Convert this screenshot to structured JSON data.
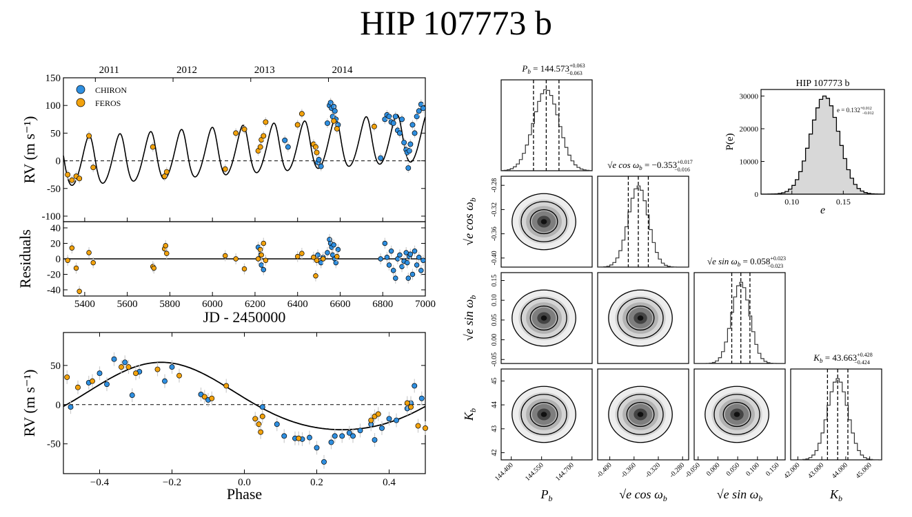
{
  "title": "HIP 107773 b",
  "legend": [
    {
      "label": "CHIRON",
      "color": "#2f8fe0"
    },
    {
      "label": "FEROS",
      "color": "#f2a20d"
    }
  ],
  "colors": {
    "chiron": "#2f8fe0",
    "feros": "#f2a20d",
    "hist_fill": "#d8d8d8"
  },
  "chart_data": [
    {
      "type": "scatter",
      "name": "rv-time-series",
      "title": "",
      "xlabel": "JD - 2450000",
      "ylabel": "RV (m s⁻¹)",
      "xlim": [
        5300,
        7000
      ],
      "ylim": [
        -110,
        150
      ],
      "x_ticks": [
        5400,
        5600,
        5800,
        6000,
        6200,
        6400,
        6600,
        6800,
        7000
      ],
      "y_ticks": [
        -100,
        -50,
        0,
        50,
        100,
        150
      ],
      "top_axis": {
        "ticks": [
          5450,
          5815,
          6180,
          6545
        ],
        "labels": [
          "2011",
          "2012",
          "2013",
          "2014"
        ]
      },
      "model": {
        "period": 144.573,
        "K": 43.663,
        "e": 0.132,
        "trend_per_day": 0.0265,
        "offset_at_5300": -6
      },
      "series": [
        {
          "name": "CHIRON",
          "points": [
            [
              6495,
              -3
            ],
            [
              6500,
              2
            ],
            [
              6510,
              -10
            ],
            [
              6540,
              68
            ],
            [
              6550,
              100
            ],
            [
              6555,
              105
            ],
            [
              6560,
              95
            ],
            [
              6565,
              80
            ],
            [
              6570,
              98
            ],
            [
              6575,
              90
            ],
            [
              6580,
              75
            ],
            [
              6590,
              65
            ],
            [
              6790,
              5
            ],
            [
              6810,
              75
            ],
            [
              6820,
              83
            ],
            [
              6830,
              80
            ],
            [
              6840,
              70
            ],
            [
              6850,
              68
            ],
            [
              6860,
              80
            ],
            [
              6870,
              55
            ],
            [
              6880,
              50
            ],
            [
              6890,
              75
            ],
            [
              6900,
              33
            ],
            [
              6910,
              20
            ],
            [
              6915,
              15
            ],
            [
              6920,
              -13
            ],
            [
              6925,
              18
            ],
            [
              6930,
              30
            ],
            [
              6940,
              65
            ],
            [
              6950,
              50
            ],
            [
              6960,
              80
            ],
            [
              6970,
              90
            ],
            [
              6980,
              102
            ],
            [
              6990,
              95
            ],
            [
              6340,
              37
            ],
            [
              6355,
              25
            ]
          ]
        },
        {
          "name": "FEROS",
          "points": [
            [
              5320,
              -25
            ],
            [
              5340,
              -35
            ],
            [
              5360,
              -28
            ],
            [
              5375,
              -32
            ],
            [
              5420,
              45
            ],
            [
              5440,
              -12
            ],
            [
              5720,
              25
            ],
            [
              5775,
              -28
            ],
            [
              5785,
              -20
            ],
            [
              6060,
              -15
            ],
            [
              6110,
              50
            ],
            [
              6150,
              57
            ],
            [
              6215,
              18
            ],
            [
              6225,
              25
            ],
            [
              6230,
              38
            ],
            [
              6240,
              45
            ],
            [
              6250,
              70
            ],
            [
              6400,
              65
            ],
            [
              6420,
              85
            ],
            [
              6475,
              30
            ],
            [
              6485,
              25
            ],
            [
              6490,
              15
            ],
            [
              6570,
              72
            ],
            [
              6585,
              58
            ],
            [
              6760,
              62
            ]
          ]
        }
      ]
    },
    {
      "type": "scatter",
      "name": "residuals",
      "xlabel": "",
      "ylabel": "Residuals",
      "xlim": [
        5300,
        7000
      ],
      "ylim": [
        -48,
        48
      ],
      "y_ticks": [
        -40,
        -20,
        0,
        20,
        40
      ],
      "series": [
        {
          "name": "CHIRON",
          "points": [
            [
              6215,
              15
            ],
            [
              6225,
              5
            ],
            [
              6230,
              -8
            ],
            [
              6240,
              -14
            ],
            [
              6495,
              5
            ],
            [
              6510,
              -5
            ],
            [
              6520,
              2
            ],
            [
              6540,
              8
            ],
            [
              6550,
              25
            ],
            [
              6555,
              20
            ],
            [
              6560,
              15
            ],
            [
              6565,
              5
            ],
            [
              6570,
              18
            ],
            [
              6575,
              0
            ],
            [
              6580,
              -5
            ],
            [
              6590,
              12
            ],
            [
              6790,
              0
            ],
            [
              6810,
              20
            ],
            [
              6820,
              2
            ],
            [
              6830,
              -8
            ],
            [
              6840,
              10
            ],
            [
              6850,
              -15
            ],
            [
              6860,
              -25
            ],
            [
              6870,
              0
            ],
            [
              6880,
              5
            ],
            [
              6890,
              -10
            ],
            [
              6900,
              -3
            ],
            [
              6910,
              8
            ],
            [
              6915,
              -5
            ],
            [
              6920,
              -25
            ],
            [
              6925,
              3
            ],
            [
              6930,
              6
            ],
            [
              6940,
              -20
            ],
            [
              6950,
              10
            ],
            [
              6960,
              -8
            ],
            [
              6970,
              2
            ],
            [
              6980,
              -15
            ],
            [
              6990,
              -2
            ]
          ]
        },
        {
          "name": "FEROS",
          "points": [
            [
              5320,
              -2
            ],
            [
              5340,
              14
            ],
            [
              5360,
              -12
            ],
            [
              5375,
              -42
            ],
            [
              5420,
              8
            ],
            [
              5440,
              -5
            ],
            [
              5720,
              -10
            ],
            [
              5725,
              -12
            ],
            [
              5775,
              13
            ],
            [
              5780,
              17
            ],
            [
              5785,
              7
            ],
            [
              6060,
              4
            ],
            [
              6110,
              0
            ],
            [
              6150,
              -13
            ],
            [
              6215,
              0
            ],
            [
              6225,
              12
            ],
            [
              6230,
              5
            ],
            [
              6240,
              20
            ],
            [
              6250,
              -2
            ],
            [
              6400,
              3
            ],
            [
              6420,
              7
            ],
            [
              6475,
              2
            ],
            [
              6485,
              -22
            ],
            [
              6490,
              -2
            ],
            [
              6520,
              0
            ],
            [
              6585,
              3
            ]
          ]
        }
      ]
    },
    {
      "type": "scatter",
      "name": "phase-folded",
      "xlabel": "Phase",
      "ylabel": "RV (m s⁻¹)",
      "xlim": [
        -0.5,
        0.5
      ],
      "ylim": [
        -88,
        92
      ],
      "x_ticks": [
        -0.4,
        -0.2,
        0.0,
        0.2,
        0.4
      ],
      "x_tick_labels": [
        "−0.4",
        "−0.2",
        "0.0",
        "0.2",
        "0.4"
      ],
      "y_ticks": [
        -50,
        0,
        50
      ],
      "series": [
        {
          "name": "CHIRON",
          "points": [
            [
              -0.48,
              -3
            ],
            [
              -0.43,
              28
            ],
            [
              -0.4,
              40
            ],
            [
              -0.38,
              26
            ],
            [
              -0.36,
              58
            ],
            [
              -0.33,
              54
            ],
            [
              -0.31,
              12
            ],
            [
              -0.29,
              42
            ],
            [
              -0.22,
              30
            ],
            [
              -0.2,
              48
            ],
            [
              -0.12,
              13
            ],
            [
              -0.1,
              6
            ],
            [
              0.05,
              -3
            ],
            [
              0.09,
              -25
            ],
            [
              0.11,
              -40
            ],
            [
              0.14,
              -43
            ],
            [
              0.16,
              -44
            ],
            [
              0.18,
              -42
            ],
            [
              0.2,
              -55
            ],
            [
              0.22,
              -73
            ],
            [
              0.24,
              -48
            ],
            [
              0.25,
              -40
            ],
            [
              0.27,
              -40
            ],
            [
              0.29,
              -36
            ],
            [
              0.3,
              -40
            ],
            [
              0.32,
              -33
            ],
            [
              0.35,
              -25
            ],
            [
              0.36,
              -45
            ],
            [
              0.38,
              -30
            ],
            [
              0.4,
              -18
            ],
            [
              0.42,
              -20
            ],
            [
              0.45,
              -5
            ],
            [
              0.46,
              2
            ],
            [
              0.47,
              24
            ],
            [
              0.49,
              8
            ]
          ]
        },
        {
          "name": "FEROS",
          "points": [
            [
              -0.49,
              35
            ],
            [
              -0.46,
              22
            ],
            [
              -0.42,
              30
            ],
            [
              -0.34,
              48
            ],
            [
              -0.32,
              48
            ],
            [
              -0.3,
              40
            ],
            [
              -0.24,
              45
            ],
            [
              -0.18,
              37
            ],
            [
              -0.11,
              10
            ],
            [
              -0.09,
              8
            ],
            [
              -0.05,
              24
            ],
            [
              0.03,
              -18
            ],
            [
              0.04,
              -25
            ],
            [
              0.045,
              -35
            ],
            [
              0.05,
              -15
            ],
            [
              0.15,
              -43
            ],
            [
              0.35,
              -20
            ],
            [
              0.36,
              -15
            ],
            [
              0.37,
              -12
            ],
            [
              0.45,
              2
            ],
            [
              0.46,
              -3
            ],
            [
              0.48,
              -27
            ],
            [
              0.5,
              -30
            ]
          ]
        }
      ]
    },
    {
      "type": "histogram",
      "name": "corner-hist-P",
      "label": "P_b = 144.573 (+0.063 / −0.063)",
      "label_main": "P",
      "label_sub": "b",
      "label_value": " = 144.573",
      "label_up": "+0.063",
      "label_down": "−0.063",
      "mean": 144.573,
      "sigma": 0.063,
      "range": [
        144.35,
        144.8
      ],
      "ticks": [
        144.4,
        144.55,
        144.7
      ],
      "tick_labels": [
        "144.400",
        "144.550",
        "144.700"
      ],
      "axis_label_main": "P",
      "axis_label_sub": "b"
    },
    {
      "type": "histogram",
      "name": "corner-hist-secos",
      "label_main": "√e cos ω",
      "label_sub": "b",
      "label_value": " = −0.353",
      "label_up": "+0.017",
      "label_down": "−0.016",
      "mean": -0.353,
      "sigma": 0.0165,
      "range": [
        -0.42,
        -0.27
      ],
      "ticks": [
        -0.4,
        -0.36,
        -0.32,
        -0.28
      ],
      "tick_labels": [
        "-0.400",
        "-0.360",
        "-0.320",
        "-0.280"
      ],
      "axis_label_main": "√e cos ω",
      "axis_label_sub": "b"
    },
    {
      "type": "histogram",
      "name": "corner-hist-sesin",
      "label_main": "√e sin ω",
      "label_sub": "b",
      "label_value": " = 0.058",
      "label_up": "+0.023",
      "label_down": "−0.023",
      "mean": 0.058,
      "sigma": 0.023,
      "range": [
        -0.06,
        0.17
      ],
      "ticks": [
        -0.05,
        0.0,
        0.05,
        0.1,
        0.15
      ],
      "tick_labels": [
        "-0.050",
        "0.000",
        "0.050",
        "0.100",
        "0.150"
      ],
      "axis_label_main": "√e sin ω",
      "axis_label_sub": "b"
    },
    {
      "type": "histogram",
      "name": "corner-hist-K",
      "label_main": "K",
      "label_sub": "b",
      "label_value": " = 43.663",
      "label_up": "+0.428",
      "label_down": "−0.424",
      "mean": 43.663,
      "sigma": 0.426,
      "range": [
        41.7,
        45.5
      ],
      "ticks": [
        42,
        43,
        44,
        45
      ],
      "tick_labels": [
        "42.000",
        "43.000",
        "44.000",
        "45.000"
      ],
      "axis_label_main": "K",
      "axis_label_sub": "b"
    },
    {
      "type": "corner-2d",
      "name": "corner-contours",
      "y_axes": [
        {
          "param": "secos",
          "ticks": [
            -0.4,
            -0.36,
            -0.32,
            -0.28
          ],
          "tick_labels": [
            "-0.40",
            "-0.36",
            "-0.32",
            "-0.28"
          ],
          "range": [
            -0.415,
            -0.265
          ],
          "label_main": "√e cos ω",
          "label_sub": "b"
        },
        {
          "param": "sesin",
          "ticks": [
            -0.05,
            0.0,
            0.05,
            0.1,
            0.15
          ],
          "tick_labels": [
            "-0.05",
            "0.00",
            "0.05",
            "0.10",
            "0.15"
          ],
          "range": [
            -0.06,
            0.17
          ],
          "label_main": "√e sin ω",
          "label_sub": "b"
        },
        {
          "param": "K",
          "ticks": [
            42,
            43,
            44,
            45
          ],
          "tick_labels": [
            "42",
            "43",
            "44",
            "45"
          ],
          "range": [
            41.7,
            45.5
          ],
          "label_main": "K",
          "label_sub": "b"
        }
      ]
    },
    {
      "type": "histogram",
      "name": "eccentricity-posterior",
      "title": "HIP 107773 b",
      "xlabel": "e",
      "ylabel": "P(e)",
      "mean": 0.132,
      "sigma": 0.012,
      "peak": 30000,
      "xlim": [
        0.07,
        0.19
      ],
      "ylim": [
        0,
        32000
      ],
      "x_ticks": [
        0.1,
        0.15
      ],
      "x_tick_labels": [
        "0.10",
        "0.15"
      ],
      "y_ticks": [
        0,
        10000,
        20000,
        30000
      ],
      "annotation_main": "e = 0.132",
      "annotation_up": "+0.012",
      "annotation_down": "−0.012"
    }
  ]
}
